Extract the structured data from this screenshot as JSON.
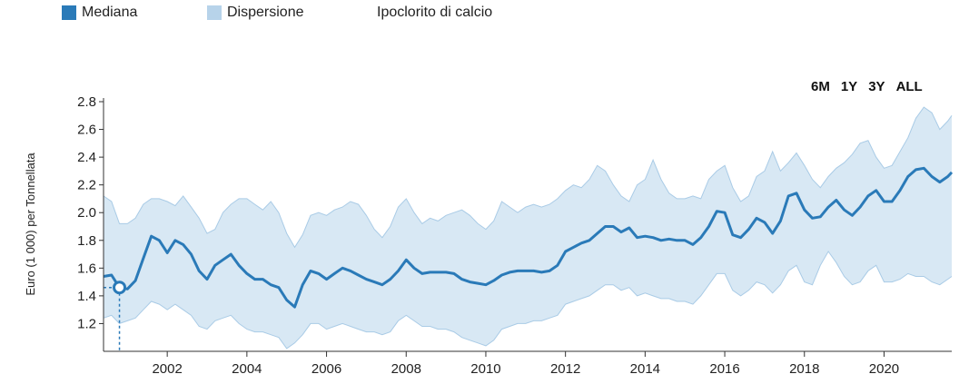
{
  "legend": {
    "median": "Mediana",
    "dispersion": "Dispersione",
    "product": "Ipoclorito di calcio"
  },
  "range_buttons": [
    "6M",
    "1Y",
    "3Y",
    "ALL"
  ],
  "colors": {
    "median": "#2a7ab8",
    "band": "#d8e8f4",
    "band_edge": "#a9cbe6",
    "swatch_band": "#b7d3ea"
  },
  "chart_data": {
    "type": "area",
    "ylabel": "Euro (1 000) per Tonnellata",
    "xlabel": "",
    "ylim": [
      1.0,
      2.8
    ],
    "xlim": [
      2000.4,
      2021.7
    ],
    "y_ticks": [
      "1.2",
      "1.4",
      "1.6",
      "1.8",
      "2.0",
      "2.2",
      "2.4",
      "2.6",
      "2.8"
    ],
    "x_ticks": [
      "2002",
      "2004",
      "2006",
      "2008",
      "2010",
      "2012",
      "2014",
      "2016",
      "2018",
      "2020"
    ],
    "highlight_point": {
      "x": 2000.8,
      "y": 1.46
    },
    "series": [
      {
        "name": "Mediana",
        "x": [
          2000.4,
          2000.6,
          2000.8,
          2001.0,
          2001.2,
          2001.4,
          2001.6,
          2001.8,
          2002.0,
          2002.2,
          2002.4,
          2002.6,
          2002.8,
          2003.0,
          2003.2,
          2003.4,
          2003.6,
          2003.8,
          2004.0,
          2004.2,
          2004.4,
          2004.6,
          2004.8,
          2005.0,
          2005.2,
          2005.4,
          2005.6,
          2005.8,
          2006.0,
          2006.2,
          2006.4,
          2006.6,
          2006.8,
          2007.0,
          2007.2,
          2007.4,
          2007.6,
          2007.8,
          2008.0,
          2008.2,
          2008.4,
          2008.6,
          2008.8,
          2009.0,
          2009.2,
          2009.4,
          2009.6,
          2009.8,
          2010.0,
          2010.2,
          2010.4,
          2010.6,
          2010.8,
          2011.0,
          2011.2,
          2011.4,
          2011.6,
          2011.8,
          2012.0,
          2012.2,
          2012.4,
          2012.6,
          2012.8,
          2013.0,
          2013.2,
          2013.4,
          2013.6,
          2013.8,
          2014.0,
          2014.2,
          2014.4,
          2014.6,
          2014.8,
          2015.0,
          2015.2,
          2015.4,
          2015.6,
          2015.8,
          2016.0,
          2016.2,
          2016.4,
          2016.6,
          2016.8,
          2017.0,
          2017.2,
          2017.4,
          2017.6,
          2017.8,
          2018.0,
          2018.2,
          2018.4,
          2018.6,
          2018.8,
          2019.0,
          2019.2,
          2019.4,
          2019.6,
          2019.8,
          2020.0,
          2020.2,
          2020.4,
          2020.6,
          2020.8,
          2021.0,
          2021.2,
          2021.4,
          2021.6,
          2021.7
        ],
        "values": [
          1.54,
          1.55,
          1.46,
          1.45,
          1.51,
          1.67,
          1.83,
          1.8,
          1.71,
          1.8,
          1.77,
          1.7,
          1.58,
          1.52,
          1.62,
          1.66,
          1.7,
          1.62,
          1.56,
          1.52,
          1.52,
          1.48,
          1.46,
          1.37,
          1.32,
          1.48,
          1.58,
          1.56,
          1.52,
          1.56,
          1.6,
          1.58,
          1.55,
          1.52,
          1.5,
          1.48,
          1.52,
          1.58,
          1.66,
          1.6,
          1.56,
          1.57,
          1.57,
          1.57,
          1.56,
          1.52,
          1.5,
          1.49,
          1.48,
          1.51,
          1.55,
          1.57,
          1.58,
          1.58,
          1.58,
          1.57,
          1.58,
          1.62,
          1.72,
          1.75,
          1.78,
          1.8,
          1.85,
          1.9,
          1.9,
          1.86,
          1.89,
          1.82,
          1.83,
          1.82,
          1.8,
          1.81,
          1.8,
          1.8,
          1.77,
          1.82,
          1.9,
          2.01,
          2.0,
          1.84,
          1.82,
          1.88,
          1.96,
          1.93,
          1.85,
          1.94,
          2.12,
          2.14,
          2.02,
          1.96,
          1.97,
          2.04,
          2.09,
          2.02,
          1.98,
          2.04,
          2.12,
          2.16,
          2.08,
          2.08,
          2.16,
          2.26,
          2.31,
          2.32,
          2.26,
          2.22,
          2.26,
          2.29
        ]
      },
      {
        "name": "Dispersione",
        "x": [
          2000.4,
          2000.6,
          2000.8,
          2001.0,
          2001.2,
          2001.4,
          2001.6,
          2001.8,
          2002.0,
          2002.2,
          2002.4,
          2002.6,
          2002.8,
          2003.0,
          2003.2,
          2003.4,
          2003.6,
          2003.8,
          2004.0,
          2004.2,
          2004.4,
          2004.6,
          2004.8,
          2005.0,
          2005.2,
          2005.4,
          2005.6,
          2005.8,
          2006.0,
          2006.2,
          2006.4,
          2006.6,
          2006.8,
          2007.0,
          2007.2,
          2007.4,
          2007.6,
          2007.8,
          2008.0,
          2008.2,
          2008.4,
          2008.6,
          2008.8,
          2009.0,
          2009.2,
          2009.4,
          2009.6,
          2009.8,
          2010.0,
          2010.2,
          2010.4,
          2010.6,
          2010.8,
          2011.0,
          2011.2,
          2011.4,
          2011.6,
          2011.8,
          2012.0,
          2012.2,
          2012.4,
          2012.6,
          2012.8,
          2013.0,
          2013.2,
          2013.4,
          2013.6,
          2013.8,
          2014.0,
          2014.2,
          2014.4,
          2014.6,
          2014.8,
          2015.0,
          2015.2,
          2015.4,
          2015.6,
          2015.8,
          2016.0,
          2016.2,
          2016.4,
          2016.6,
          2016.8,
          2017.0,
          2017.2,
          2017.4,
          2017.6,
          2017.8,
          2018.0,
          2018.2,
          2018.4,
          2018.6,
          2018.8,
          2019.0,
          2019.2,
          2019.4,
          2019.6,
          2019.8,
          2020.0,
          2020.2,
          2020.4,
          2020.6,
          2020.8,
          2021.0,
          2021.2,
          2021.4,
          2021.6,
          2021.7
        ],
        "upper": [
          2.12,
          2.08,
          1.92,
          1.92,
          1.96,
          2.06,
          2.1,
          2.1,
          2.08,
          2.05,
          2.12,
          2.04,
          1.96,
          1.85,
          1.88,
          2.0,
          2.06,
          2.1,
          2.1,
          2.06,
          2.02,
          2.08,
          2.0,
          1.85,
          1.75,
          1.84,
          1.98,
          2.0,
          1.98,
          2.02,
          2.04,
          2.08,
          2.06,
          1.98,
          1.88,
          1.82,
          1.9,
          2.04,
          2.1,
          2.0,
          1.92,
          1.96,
          1.94,
          1.98,
          2.0,
          2.02,
          1.98,
          1.92,
          1.88,
          1.94,
          2.08,
          2.04,
          2.0,
          2.04,
          2.06,
          2.04,
          2.06,
          2.1,
          2.16,
          2.2,
          2.18,
          2.24,
          2.34,
          2.3,
          2.2,
          2.12,
          2.08,
          2.2,
          2.24,
          2.38,
          2.24,
          2.14,
          2.1,
          2.1,
          2.12,
          2.1,
          2.24,
          2.3,
          2.34,
          2.18,
          2.08,
          2.12,
          2.26,
          2.3,
          2.44,
          2.3,
          2.36,
          2.43,
          2.34,
          2.24,
          2.18,
          2.26,
          2.32,
          2.36,
          2.42,
          2.5,
          2.52,
          2.4,
          2.32,
          2.34,
          2.44,
          2.54,
          2.68,
          2.76,
          2.72,
          2.6,
          2.66,
          2.7
        ],
        "lower": [
          1.24,
          1.26,
          1.2,
          1.22,
          1.24,
          1.3,
          1.36,
          1.34,
          1.3,
          1.34,
          1.3,
          1.26,
          1.18,
          1.16,
          1.22,
          1.24,
          1.26,
          1.2,
          1.16,
          1.14,
          1.14,
          1.12,
          1.1,
          1.02,
          1.06,
          1.12,
          1.2,
          1.2,
          1.16,
          1.18,
          1.2,
          1.18,
          1.16,
          1.14,
          1.14,
          1.12,
          1.14,
          1.22,
          1.26,
          1.22,
          1.18,
          1.18,
          1.16,
          1.16,
          1.14,
          1.1,
          1.08,
          1.06,
          1.04,
          1.08,
          1.16,
          1.18,
          1.2,
          1.2,
          1.22,
          1.22,
          1.24,
          1.26,
          1.34,
          1.36,
          1.38,
          1.4,
          1.44,
          1.48,
          1.48,
          1.44,
          1.46,
          1.4,
          1.42,
          1.4,
          1.38,
          1.38,
          1.36,
          1.36,
          1.34,
          1.4,
          1.48,
          1.56,
          1.56,
          1.44,
          1.4,
          1.44,
          1.5,
          1.48,
          1.42,
          1.48,
          1.58,
          1.62,
          1.5,
          1.48,
          1.62,
          1.72,
          1.64,
          1.54,
          1.48,
          1.5,
          1.58,
          1.62,
          1.5,
          1.5,
          1.52,
          1.56,
          1.54,
          1.54,
          1.5,
          1.48,
          1.52,
          1.54
        ]
      }
    ]
  }
}
